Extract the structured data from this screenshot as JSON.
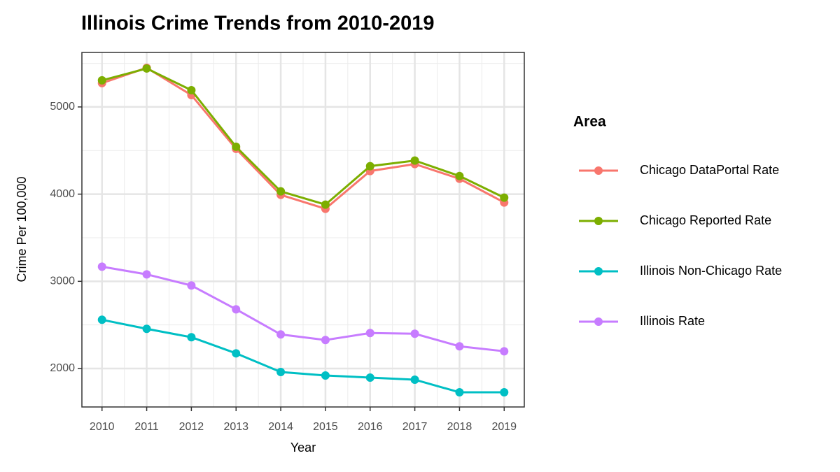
{
  "chart_data": {
    "type": "line",
    "title": "Illinois Crime Trends from 2010-2019",
    "x_label": "Year",
    "y_label": "Crime Per 100,000",
    "legend_title": "Area",
    "legend_position": "right",
    "x": [
      2010,
      2011,
      2012,
      2013,
      2014,
      2015,
      2016,
      2017,
      2018,
      2019
    ],
    "series": [
      {
        "name": "Chicago DataPortal Rate",
        "color": "#F8766D",
        "values": [
          5273,
          5449,
          5136,
          4519,
          3992,
          3832,
          4265,
          4345,
          4176,
          3904
        ]
      },
      {
        "name": "Chicago Reported Rate",
        "color": "#7CAE00",
        "values": [
          5305,
          5441,
          5192,
          4543,
          4032,
          3880,
          4321,
          4385,
          4208,
          3960
        ]
      },
      {
        "name": "Illinois Non-Chicago Rate",
        "color": "#00BFC4",
        "values": [
          2559,
          2455,
          2359,
          2174,
          1960,
          1920,
          1896,
          1872,
          1727,
          1727
        ]
      },
      {
        "name": "Illinois Rate",
        "color": "#C77CFF",
        "values": [
          3168,
          3080,
          2952,
          2679,
          2391,
          2327,
          2407,
          2399,
          2255,
          2198
        ]
      }
    ],
    "xlim": [
      2009.55,
      2019.45
    ],
    "xticks": [
      2010,
      2011,
      2012,
      2013,
      2014,
      2015,
      2016,
      2017,
      2018,
      2019
    ],
    "ylim": [
      1559,
      5625
    ],
    "yticks": [
      2000,
      3000,
      4000,
      5000
    ],
    "grid": true
  }
}
